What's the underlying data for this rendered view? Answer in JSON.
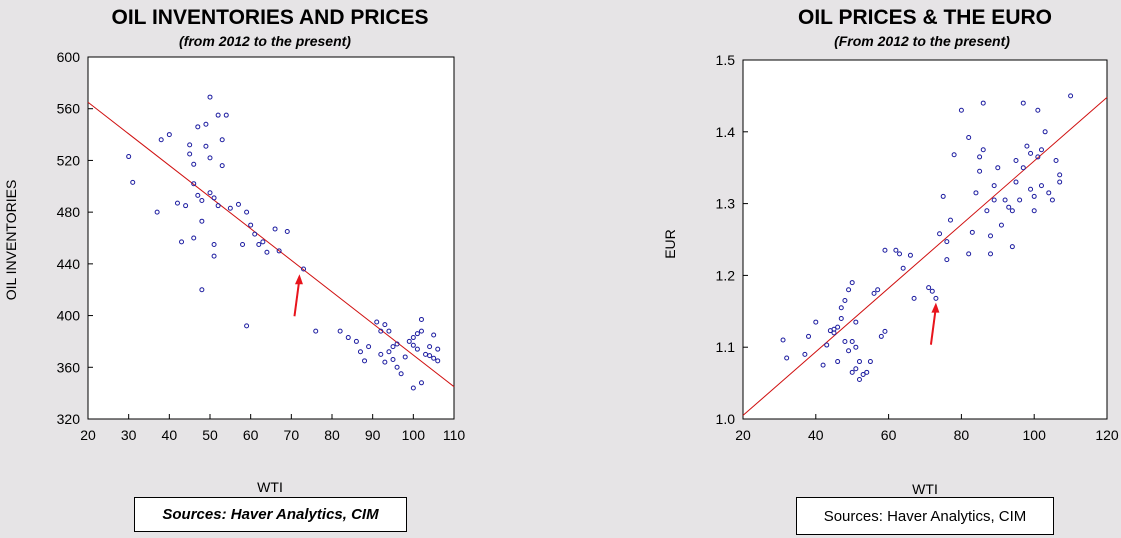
{
  "chart_data": [
    {
      "type": "scatter",
      "title": "OIL INVENTORIES AND PRICES",
      "subtitle": "(from 2012 to the present)",
      "xlabel": "WTI",
      "ylabel": "OIL INVENTORIES",
      "xlim": [
        20,
        110
      ],
      "ylim": [
        320,
        600
      ],
      "xticks": [
        "20",
        "30",
        "40",
        "50",
        "60",
        "70",
        "80",
        "90",
        "100",
        "110"
      ],
      "yticks": [
        "600",
        "560",
        "520",
        "480",
        "440",
        "400",
        "360",
        "320"
      ],
      "grid": false,
      "fit_line": {
        "x": [
          20,
          110
        ],
        "y": [
          565,
          345
        ]
      },
      "annotation": {
        "type": "arrow",
        "color": "#e8141c",
        "x": 72,
        "y": 432
      },
      "points": [
        [
          30,
          523
        ],
        [
          31,
          503
        ],
        [
          37,
          480
        ],
        [
          38,
          536
        ],
        [
          40,
          540
        ],
        [
          42,
          487
        ],
        [
          43,
          457
        ],
        [
          44,
          485
        ],
        [
          45,
          525
        ],
        [
          45,
          532
        ],
        [
          46,
          517
        ],
        [
          46,
          502
        ],
        [
          46,
          460
        ],
        [
          47,
          493
        ],
        [
          47,
          546
        ],
        [
          48,
          473
        ],
        [
          48,
          489
        ],
        [
          48,
          420
        ],
        [
          49,
          548
        ],
        [
          49,
          531
        ],
        [
          50,
          569
        ],
        [
          50,
          522
        ],
        [
          50,
          495
        ],
        [
          51,
          491
        ],
        [
          51,
          455
        ],
        [
          51,
          446
        ],
        [
          52,
          555
        ],
        [
          52,
          485
        ],
        [
          53,
          516
        ],
        [
          53,
          536
        ],
        [
          54,
          555
        ],
        [
          55,
          483
        ],
        [
          57,
          486
        ],
        [
          58,
          455
        ],
        [
          59,
          480
        ],
        [
          59,
          392
        ],
        [
          60,
          470
        ],
        [
          61,
          463
        ],
        [
          62,
          455
        ],
        [
          63,
          457
        ],
        [
          64,
          449
        ],
        [
          66,
          467
        ],
        [
          67,
          450
        ],
        [
          69,
          465
        ],
        [
          73,
          436
        ],
        [
          76,
          388
        ],
        [
          82,
          388
        ],
        [
          84,
          383
        ],
        [
          86,
          380
        ],
        [
          87,
          372
        ],
        [
          88,
          365
        ],
        [
          89,
          376
        ],
        [
          91,
          395
        ],
        [
          92,
          388
        ],
        [
          92,
          370
        ],
        [
          93,
          393
        ],
        [
          93,
          364
        ],
        [
          94,
          372
        ],
        [
          94,
          388
        ],
        [
          95,
          376
        ],
        [
          95,
          366
        ],
        [
          96,
          378
        ],
        [
          96,
          360
        ],
        [
          97,
          355
        ],
        [
          98,
          368
        ],
        [
          99,
          380
        ],
        [
          100,
          344
        ],
        [
          100,
          377
        ],
        [
          100,
          383
        ],
        [
          101,
          386
        ],
        [
          101,
          374
        ],
        [
          102,
          388
        ],
        [
          102,
          397
        ],
        [
          102,
          348
        ],
        [
          103,
          370
        ],
        [
          104,
          376
        ],
        [
          104,
          369
        ],
        [
          105,
          367
        ],
        [
          105,
          385
        ],
        [
          106,
          374
        ],
        [
          106,
          365
        ]
      ]
    },
    {
      "type": "scatter",
      "title": "OIL PRICES & THE EURO",
      "subtitle": "(From 2012 to the present)",
      "xlabel": "WTI",
      "ylabel": "EUR",
      "xlim": [
        20,
        120
      ],
      "ylim": [
        1.0,
        1.5
      ],
      "xticks": [
        "20",
        "40",
        "60",
        "80",
        "100",
        "120"
      ],
      "yticks": [
        "1.5",
        "1.4",
        "1.3",
        "1.2",
        "1.1",
        "1.0"
      ],
      "grid": false,
      "fit_line": {
        "x": [
          20,
          120
        ],
        "y": [
          1.005,
          1.448
        ]
      },
      "annotation": {
        "type": "arrow",
        "color": "#e8141c",
        "x": 73,
        "y": 1.162
      },
      "points": [
        [
          31,
          1.11
        ],
        [
          32,
          1.085
        ],
        [
          37,
          1.09
        ],
        [
          38,
          1.115
        ],
        [
          40,
          1.135
        ],
        [
          42,
          1.075
        ],
        [
          43,
          1.103
        ],
        [
          44,
          1.123
        ],
        [
          45,
          1.125
        ],
        [
          45,
          1.12
        ],
        [
          46,
          1.128
        ],
        [
          46,
          1.08
        ],
        [
          47,
          1.155
        ],
        [
          47,
          1.14
        ],
        [
          48,
          1.165
        ],
        [
          48,
          1.108
        ],
        [
          49,
          1.18
        ],
        [
          49,
          1.095
        ],
        [
          50,
          1.19
        ],
        [
          50,
          1.108
        ],
        [
          50,
          1.065
        ],
        [
          51,
          1.1
        ],
        [
          51,
          1.135
        ],
        [
          51,
          1.07
        ],
        [
          52,
          1.055
        ],
        [
          52,
          1.08
        ],
        [
          53,
          1.062
        ],
        [
          54,
          1.065
        ],
        [
          55,
          1.08
        ],
        [
          56,
          1.175
        ],
        [
          57,
          1.18
        ],
        [
          58,
          1.115
        ],
        [
          59,
          1.235
        ],
        [
          59,
          1.122
        ],
        [
          62,
          1.235
        ],
        [
          63,
          1.23
        ],
        [
          64,
          1.21
        ],
        [
          66,
          1.228
        ],
        [
          67,
          1.168
        ],
        [
          71,
          1.183
        ],
        [
          72,
          1.178
        ],
        [
          73,
          1.168
        ],
        [
          74,
          1.258
        ],
        [
          75,
          1.31
        ],
        [
          76,
          1.222
        ],
        [
          76,
          1.247
        ],
        [
          77,
          1.277
        ],
        [
          78,
          1.368
        ],
        [
          80,
          1.43
        ],
        [
          82,
          1.23
        ],
        [
          82,
          1.392
        ],
        [
          83,
          1.26
        ],
        [
          84,
          1.315
        ],
        [
          85,
          1.365
        ],
        [
          85,
          1.345
        ],
        [
          86,
          1.375
        ],
        [
          86,
          1.44
        ],
        [
          87,
          1.29
        ],
        [
          88,
          1.255
        ],
        [
          88,
          1.23
        ],
        [
          89,
          1.305
        ],
        [
          89,
          1.325
        ],
        [
          90,
          1.35
        ],
        [
          91,
          1.27
        ],
        [
          92,
          1.305
        ],
        [
          93,
          1.295
        ],
        [
          94,
          1.24
        ],
        [
          94,
          1.29
        ],
        [
          95,
          1.36
        ],
        [
          95,
          1.33
        ],
        [
          96,
          1.305
        ],
        [
          97,
          1.44
        ],
        [
          97,
          1.35
        ],
        [
          98,
          1.38
        ],
        [
          99,
          1.37
        ],
        [
          99,
          1.32
        ],
        [
          100,
          1.31
        ],
        [
          100,
          1.29
        ],
        [
          101,
          1.43
        ],
        [
          101,
          1.365
        ],
        [
          102,
          1.375
        ],
        [
          102,
          1.325
        ],
        [
          103,
          1.4
        ],
        [
          104,
          1.315
        ],
        [
          105,
          1.305
        ],
        [
          106,
          1.36
        ],
        [
          107,
          1.34
        ],
        [
          107,
          1.33
        ],
        [
          110,
          1.45
        ]
      ]
    }
  ],
  "sources": {
    "left": "Sources:  Haver Analytics, CIM",
    "right": "Sources:  Haver Analytics, CIM"
  },
  "colors": {
    "points": "#1c1ca0",
    "fit_line": "#d01010",
    "arrow": "#e8141c",
    "plot_bg": "#ffffff",
    "page_bg": "#e6e4e6"
  }
}
